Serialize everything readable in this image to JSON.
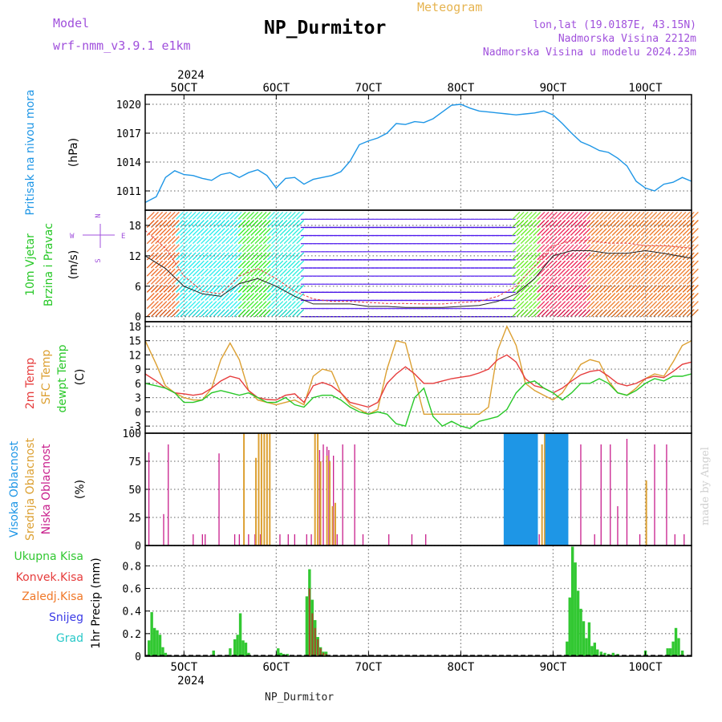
{
  "header": {
    "model_label": "Model",
    "model_name": "wrf-nmm_v3.9.1 e1km",
    "station": "NP_Durmitor",
    "title": "Meteogram",
    "lonlat": "lon,lat (19.0187E, 43.15N)",
    "elevation": "Nadmorska Visina 2212m",
    "model_elevation": "Nadmorska Visina u modelu 2024.23m",
    "footer_station": "NP_Durmitor",
    "credit": "made by Angel"
  },
  "colors": {
    "pressure": "#1e96e6",
    "temp2m": "#e63c3c",
    "sfc_temp": "#dca032",
    "dewpt": "#28c828",
    "high_cloud": "#1e96e6",
    "mid_cloud": "#dca032",
    "low_cloud": "#c81e8c",
    "label_purple": "#a050dc",
    "gold": "#e6b450",
    "total_precip": "#32c832",
    "conv_precip": "#a05028"
  },
  "chart_data": [
    {
      "type": "line",
      "panel": "pressure",
      "ylabel": "Pritisak na nivou mora",
      "unit": "(hPa)",
      "x_ticks": [
        "5OCT",
        "6OCT",
        "7OCT",
        "8OCT",
        "9OCT",
        "10OCT"
      ],
      "year": "2024",
      "ylim": [
        1009,
        1021
      ],
      "yticks": [
        1011,
        1014,
        1017,
        1020
      ],
      "x": [
        4.58,
        4.7,
        4.8,
        4.9,
        5.0,
        5.1,
        5.2,
        5.3,
        5.4,
        5.5,
        5.6,
        5.7,
        5.8,
        5.9,
        6.0,
        6.1,
        6.2,
        6.3,
        6.4,
        6.5,
        6.6,
        6.7,
        6.8,
        6.9,
        7.0,
        7.1,
        7.2,
        7.3,
        7.4,
        7.5,
        7.6,
        7.7,
        7.8,
        7.9,
        8.0,
        8.1,
        8.2,
        8.3,
        8.4,
        8.5,
        8.6,
        8.7,
        8.8,
        8.9,
        9.0,
        9.1,
        9.2,
        9.3,
        9.4,
        9.5,
        9.6,
        9.7,
        9.8,
        9.9,
        10.0,
        10.1,
        10.2,
        10.3,
        10.4,
        10.5
      ],
      "series": [
        {
          "values": [
            1009.8,
            1010.4,
            1012.4,
            1013.1,
            1012.7,
            1012.6,
            1012.3,
            1012.1,
            1012.7,
            1012.9,
            1012.4,
            1012.9,
            1013.2,
            1012.6,
            1011.3,
            1012.3,
            1012.4,
            1011.7,
            1012.2,
            1012.4,
            1012.6,
            1013.0,
            1014.1,
            1015.8,
            1016.2,
            1016.5,
            1017.0,
            1018.0,
            1017.9,
            1018.2,
            1018.1,
            1018.5,
            1019.2,
            1019.9,
            1020.0,
            1019.6,
            1019.3,
            1019.2,
            1019.1,
            1019.0,
            1018.9,
            1019.0,
            1019.1,
            1019.3,
            1018.9,
            1018.0,
            1017.0,
            1016.1,
            1015.7,
            1015.2,
            1015.0,
            1014.4,
            1013.6,
            1012.0,
            1011.3,
            1011.0,
            1011.7,
            1011.9,
            1012.4,
            1012.0
          ]
        }
      ]
    },
    {
      "type": "line",
      "panel": "wind",
      "ylabel": "10m Vjetar Brzina i Pravac",
      "unit": "(m/s)",
      "compass": [
        "N",
        "W",
        "E",
        "S"
      ],
      "ylim": [
        -1,
        21
      ],
      "yticks": [
        0,
        6,
        12,
        18
      ],
      "x": [
        4.58,
        4.8,
        5.0,
        5.2,
        5.4,
        5.6,
        5.8,
        6.0,
        6.2,
        6.4,
        6.6,
        6.8,
        7.0,
        7.2,
        7.4,
        7.6,
        7.8,
        8.0,
        8.2,
        8.4,
        8.6,
        8.8,
        9.0,
        9.2,
        9.4,
        9.6,
        9.8,
        10.0,
        10.2,
        10.5
      ],
      "series": [
        {
          "name": "speed",
          "values": [
            12.0,
            9.5,
            6.0,
            4.5,
            4.0,
            6.5,
            7.5,
            6.0,
            4.0,
            2.5,
            2.5,
            2.5,
            2.0,
            2.0,
            1.8,
            1.8,
            1.8,
            2.0,
            2.2,
            3.0,
            4.5,
            7.5,
            12.0,
            13.0,
            13.0,
            12.5,
            12.5,
            13.0,
            12.5,
            11.5
          ]
        },
        {
          "name": "gust",
          "values": [
            17.0,
            13.5,
            8.0,
            5.0,
            4.5,
            8.0,
            9.5,
            7.5,
            5.0,
            3.5,
            3.0,
            3.0,
            2.8,
            2.6,
            2.6,
            2.5,
            2.5,
            2.8,
            3.0,
            4.0,
            6.0,
            10.0,
            14.0,
            15.0,
            15.0,
            14.5,
            14.5,
            14.0,
            14.0,
            13.5
          ]
        }
      ]
    },
    {
      "type": "line",
      "panel": "temperature",
      "ylabels": [
        "2m Temp",
        "SFC Temp",
        "dewpt Temp"
      ],
      "unit": "(C)",
      "ylim": [
        -4.5,
        19
      ],
      "yticks": [
        -3,
        0,
        3,
        6,
        9,
        12,
        15,
        18
      ],
      "x": [
        4.58,
        4.7,
        4.8,
        4.9,
        5.0,
        5.1,
        5.2,
        5.3,
        5.4,
        5.5,
        5.6,
        5.7,
        5.8,
        5.9,
        6.0,
        6.1,
        6.2,
        6.3,
        6.4,
        6.5,
        6.6,
        6.7,
        6.8,
        6.9,
        7.0,
        7.1,
        7.2,
        7.3,
        7.4,
        7.5,
        7.6,
        7.7,
        7.8,
        7.9,
        8.0,
        8.1,
        8.2,
        8.3,
        8.4,
        8.5,
        8.6,
        8.7,
        8.8,
        8.9,
        9.0,
        9.1,
        9.2,
        9.3,
        9.4,
        9.5,
        9.6,
        9.7,
        9.8,
        9.9,
        10.0,
        10.1,
        10.2,
        10.3,
        10.4,
        10.5
      ],
      "series": [
        {
          "name": "2m Temp",
          "values": [
            8.0,
            6.5,
            5.0,
            4.0,
            3.8,
            3.5,
            3.8,
            5.0,
            6.5,
            7.5,
            7.0,
            4.5,
            3.0,
            2.6,
            2.5,
            3.5,
            3.8,
            2.0,
            5.5,
            6.2,
            5.5,
            4.0,
            2.0,
            1.5,
            1.0,
            2.0,
            6.0,
            8.0,
            9.5,
            8.0,
            6.0,
            6.0,
            6.5,
            7.0,
            7.3,
            7.6,
            8.2,
            9.0,
            11.0,
            12.0,
            10.5,
            7.0,
            5.5,
            5.0,
            4.0,
            5.0,
            6.5,
            7.8,
            8.5,
            8.8,
            7.5,
            6.0,
            5.5,
            6.0,
            7.0,
            7.5,
            7.2,
            8.5,
            10.0,
            10.5
          ]
        },
        {
          "name": "SFC Temp",
          "values": [
            15.0,
            10.0,
            5.5,
            4.0,
            3.0,
            2.5,
            2.5,
            5.0,
            11.0,
            14.5,
            11.0,
            4.5,
            2.5,
            2.0,
            1.5,
            2.0,
            2.5,
            1.5,
            7.5,
            9.0,
            8.5,
            4.0,
            1.5,
            0.5,
            -0.5,
            0.5,
            9.0,
            15.0,
            14.5,
            7.0,
            -0.5,
            -0.5,
            -0.5,
            -0.5,
            -0.5,
            -0.5,
            -0.5,
            1.0,
            13.0,
            18.0,
            14.0,
            6.0,
            4.5,
            3.5,
            2.5,
            4.0,
            7.0,
            10.0,
            11.0,
            10.5,
            6.5,
            4.0,
            3.5,
            5.0,
            7.0,
            8.0,
            7.5,
            10.5,
            14.0,
            15.0
          ]
        },
        {
          "name": "dewpt Temp",
          "values": [
            6.0,
            5.5,
            5.0,
            4.0,
            2.0,
            2.0,
            2.5,
            4.0,
            4.5,
            4.0,
            3.5,
            4.0,
            3.0,
            2.0,
            2.0,
            3.0,
            1.5,
            1.0,
            3.0,
            3.5,
            3.5,
            2.5,
            1.0,
            0.0,
            -0.5,
            0.0,
            -0.5,
            -2.5,
            -3.0,
            3.0,
            5.0,
            -1.0,
            -3.0,
            -2.0,
            -3.0,
            -3.5,
            -2.0,
            -1.5,
            -1.0,
            0.5,
            4.0,
            6.0,
            6.5,
            5.0,
            4.0,
            2.5,
            4.0,
            6.0,
            6.0,
            7.0,
            6.0,
            4.0,
            3.5,
            4.5,
            6.0,
            7.0,
            6.5,
            7.5,
            7.5,
            8.0
          ]
        }
      ]
    },
    {
      "type": "bar",
      "panel": "cloud",
      "ylabels": [
        "Visoka Oblacnost",
        "Srednja Oblacnost",
        "Niska Oblacnost"
      ],
      "unit": "(%)",
      "ylim": [
        0,
        100
      ],
      "yticks": [
        0,
        25,
        50,
        75,
        100
      ],
      "series": [
        {
          "name": "Niska Oblacnost",
          "x": [
            4.62,
            4.78,
            4.83,
            5.1,
            5.2,
            5.23,
            5.38,
            5.55,
            5.6,
            5.7,
            5.77,
            5.83,
            6.04,
            6.13,
            6.2,
            6.33,
            6.38,
            6.42,
            6.47,
            6.51,
            6.55,
            6.57,
            6.62,
            6.66,
            6.72,
            6.85,
            6.94,
            7.22,
            7.47,
            7.62,
            8.5,
            8.75,
            8.85,
            8.92,
            8.98,
            9.03,
            9.1,
            9.3,
            9.45,
            9.52,
            9.62,
            9.7,
            9.8,
            9.94,
            10.1,
            10.23,
            10.32,
            10.42
          ],
          "values": [
            83,
            28,
            90,
            10,
            10,
            10,
            82,
            10,
            10,
            10,
            10,
            10,
            10,
            10,
            10,
            10,
            10,
            90,
            85,
            90,
            88,
            85,
            80,
            10,
            90,
            90,
            10,
            10,
            10,
            10,
            10,
            10,
            10,
            100,
            100,
            100,
            70,
            90,
            10,
            90,
            90,
            35,
            95,
            10,
            90,
            90,
            10,
            10
          ]
        },
        {
          "name": "Srednja Oblacnost",
          "x": [
            5.65,
            5.78,
            5.81,
            5.84,
            5.87,
            5.9,
            5.93,
            6.42,
            6.45,
            6.48,
            6.55,
            6.58,
            6.61,
            6.64,
            8.88,
            8.91,
            8.94,
            8.97,
            9.0,
            9.03,
            9.06,
            9.1,
            10.01
          ],
          "values": [
            100,
            78,
            100,
            100,
            100,
            100,
            100,
            100,
            100,
            75,
            80,
            75,
            35,
            38,
            90,
            100,
            100,
            88,
            85,
            100,
            100,
            90,
            58
          ]
        },
        {
          "name": "Visoka Oblacnost",
          "x": [
            8.48,
            8.5,
            8.52,
            8.54,
            8.56,
            8.58,
            8.6,
            8.62,
            8.64,
            8.66,
            8.68,
            8.7,
            8.72,
            8.74,
            8.76,
            8.78,
            8.8,
            8.82,
            8.93,
            8.95,
            8.97,
            8.99,
            9.01,
            9.03,
            9.05,
            9.07,
            9.09,
            9.11,
            9.13,
            9.15
          ],
          "values": [
            100,
            100,
            100,
            100,
            100,
            100,
            100,
            100,
            100,
            100,
            100,
            100,
            100,
            100,
            100,
            100,
            100,
            100,
            100,
            100,
            100,
            100,
            100,
            100,
            100,
            100,
            100,
            100,
            100,
            100
          ]
        }
      ]
    },
    {
      "type": "bar",
      "panel": "precip",
      "ylabel": "1hr Precip (mm)",
      "legend": [
        "Ukupna Kisa",
        "Konvek.Kisa",
        "Zaledj.Kisa",
        "Snijeg",
        "Grad"
      ],
      "ylim": [
        0,
        0.98
      ],
      "yticks": [
        0,
        0.2,
        0.4,
        0.6,
        0.8
      ],
      "series": [
        {
          "name": "Ukupna Kisa",
          "x": [
            4.62,
            4.65,
            4.68,
            4.71,
            4.74,
            4.77,
            4.8,
            5.32,
            5.5,
            5.55,
            5.58,
            5.61,
            5.64,
            5.67,
            5.7,
            6.02,
            6.05,
            6.08,
            6.12,
            6.33,
            6.36,
            6.39,
            6.42,
            6.45,
            6.48,
            6.51,
            6.54,
            9.15,
            9.18,
            9.21,
            9.24,
            9.27,
            9.3,
            9.33,
            9.36,
            9.39,
            9.42,
            9.45,
            9.48,
            9.52,
            9.56,
            9.6,
            9.65,
            9.7,
            10.0,
            10.24,
            10.27,
            10.3,
            10.33,
            10.36,
            10.4
          ],
          "values": [
            0.14,
            0.39,
            0.25,
            0.23,
            0.19,
            0.08,
            0.03,
            0.05,
            0.07,
            0.15,
            0.19,
            0.38,
            0.14,
            0.12,
            0.03,
            0.07,
            0.03,
            0.02,
            0.02,
            0.53,
            0.77,
            0.5,
            0.32,
            0.17,
            0.08,
            0.04,
            0.04,
            0.13,
            0.52,
            0.97,
            0.83,
            0.58,
            0.42,
            0.31,
            0.16,
            0.3,
            0.09,
            0.12,
            0.06,
            0.04,
            0.03,
            0.02,
            0.03,
            0.02,
            0.05,
            0.07,
            0.07,
            0.13,
            0.25,
            0.16,
            0.05
          ]
        },
        {
          "name": "Konvek.Kisa",
          "x": [
            6.36,
            6.39,
            6.42,
            6.45,
            6.48,
            6.51,
            6.54
          ],
          "values": [
            0.6,
            0.38,
            0.25,
            0.15,
            0.07,
            0.03,
            0.02
          ]
        }
      ]
    }
  ]
}
